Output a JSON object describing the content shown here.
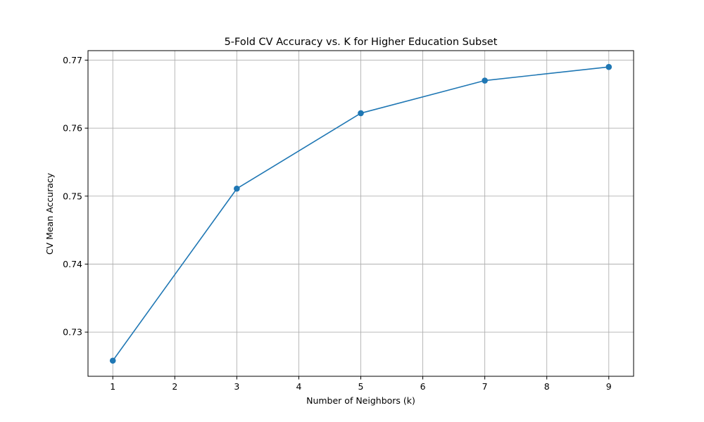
{
  "chart_data": {
    "type": "line",
    "title": "5-Fold CV Accuracy vs. K for Higher Education Subset",
    "xlabel": "Number of Neighbors (k)",
    "ylabel": "CV Mean Accuracy",
    "x": [
      1,
      3,
      5,
      7,
      9
    ],
    "series": [
      {
        "values": [
          0.7258,
          0.7511,
          0.7622,
          0.767,
          0.769
        ]
      }
    ],
    "xlim": [
      0.6,
      9.4
    ],
    "ylim": [
      0.7235,
      0.7714
    ],
    "xticks": [
      1,
      2,
      3,
      4,
      5,
      6,
      7,
      8,
      9
    ],
    "xtick_labels": [
      "1",
      "2",
      "3",
      "4",
      "5",
      "6",
      "7",
      "8",
      "9"
    ],
    "yticks": [
      0.73,
      0.74,
      0.75,
      0.76,
      0.77
    ],
    "ytick_labels": [
      "0.73",
      "0.74",
      "0.75",
      "0.76",
      "0.77"
    ],
    "grid": true,
    "marker": "circle",
    "line_color": "#1f77b4"
  }
}
